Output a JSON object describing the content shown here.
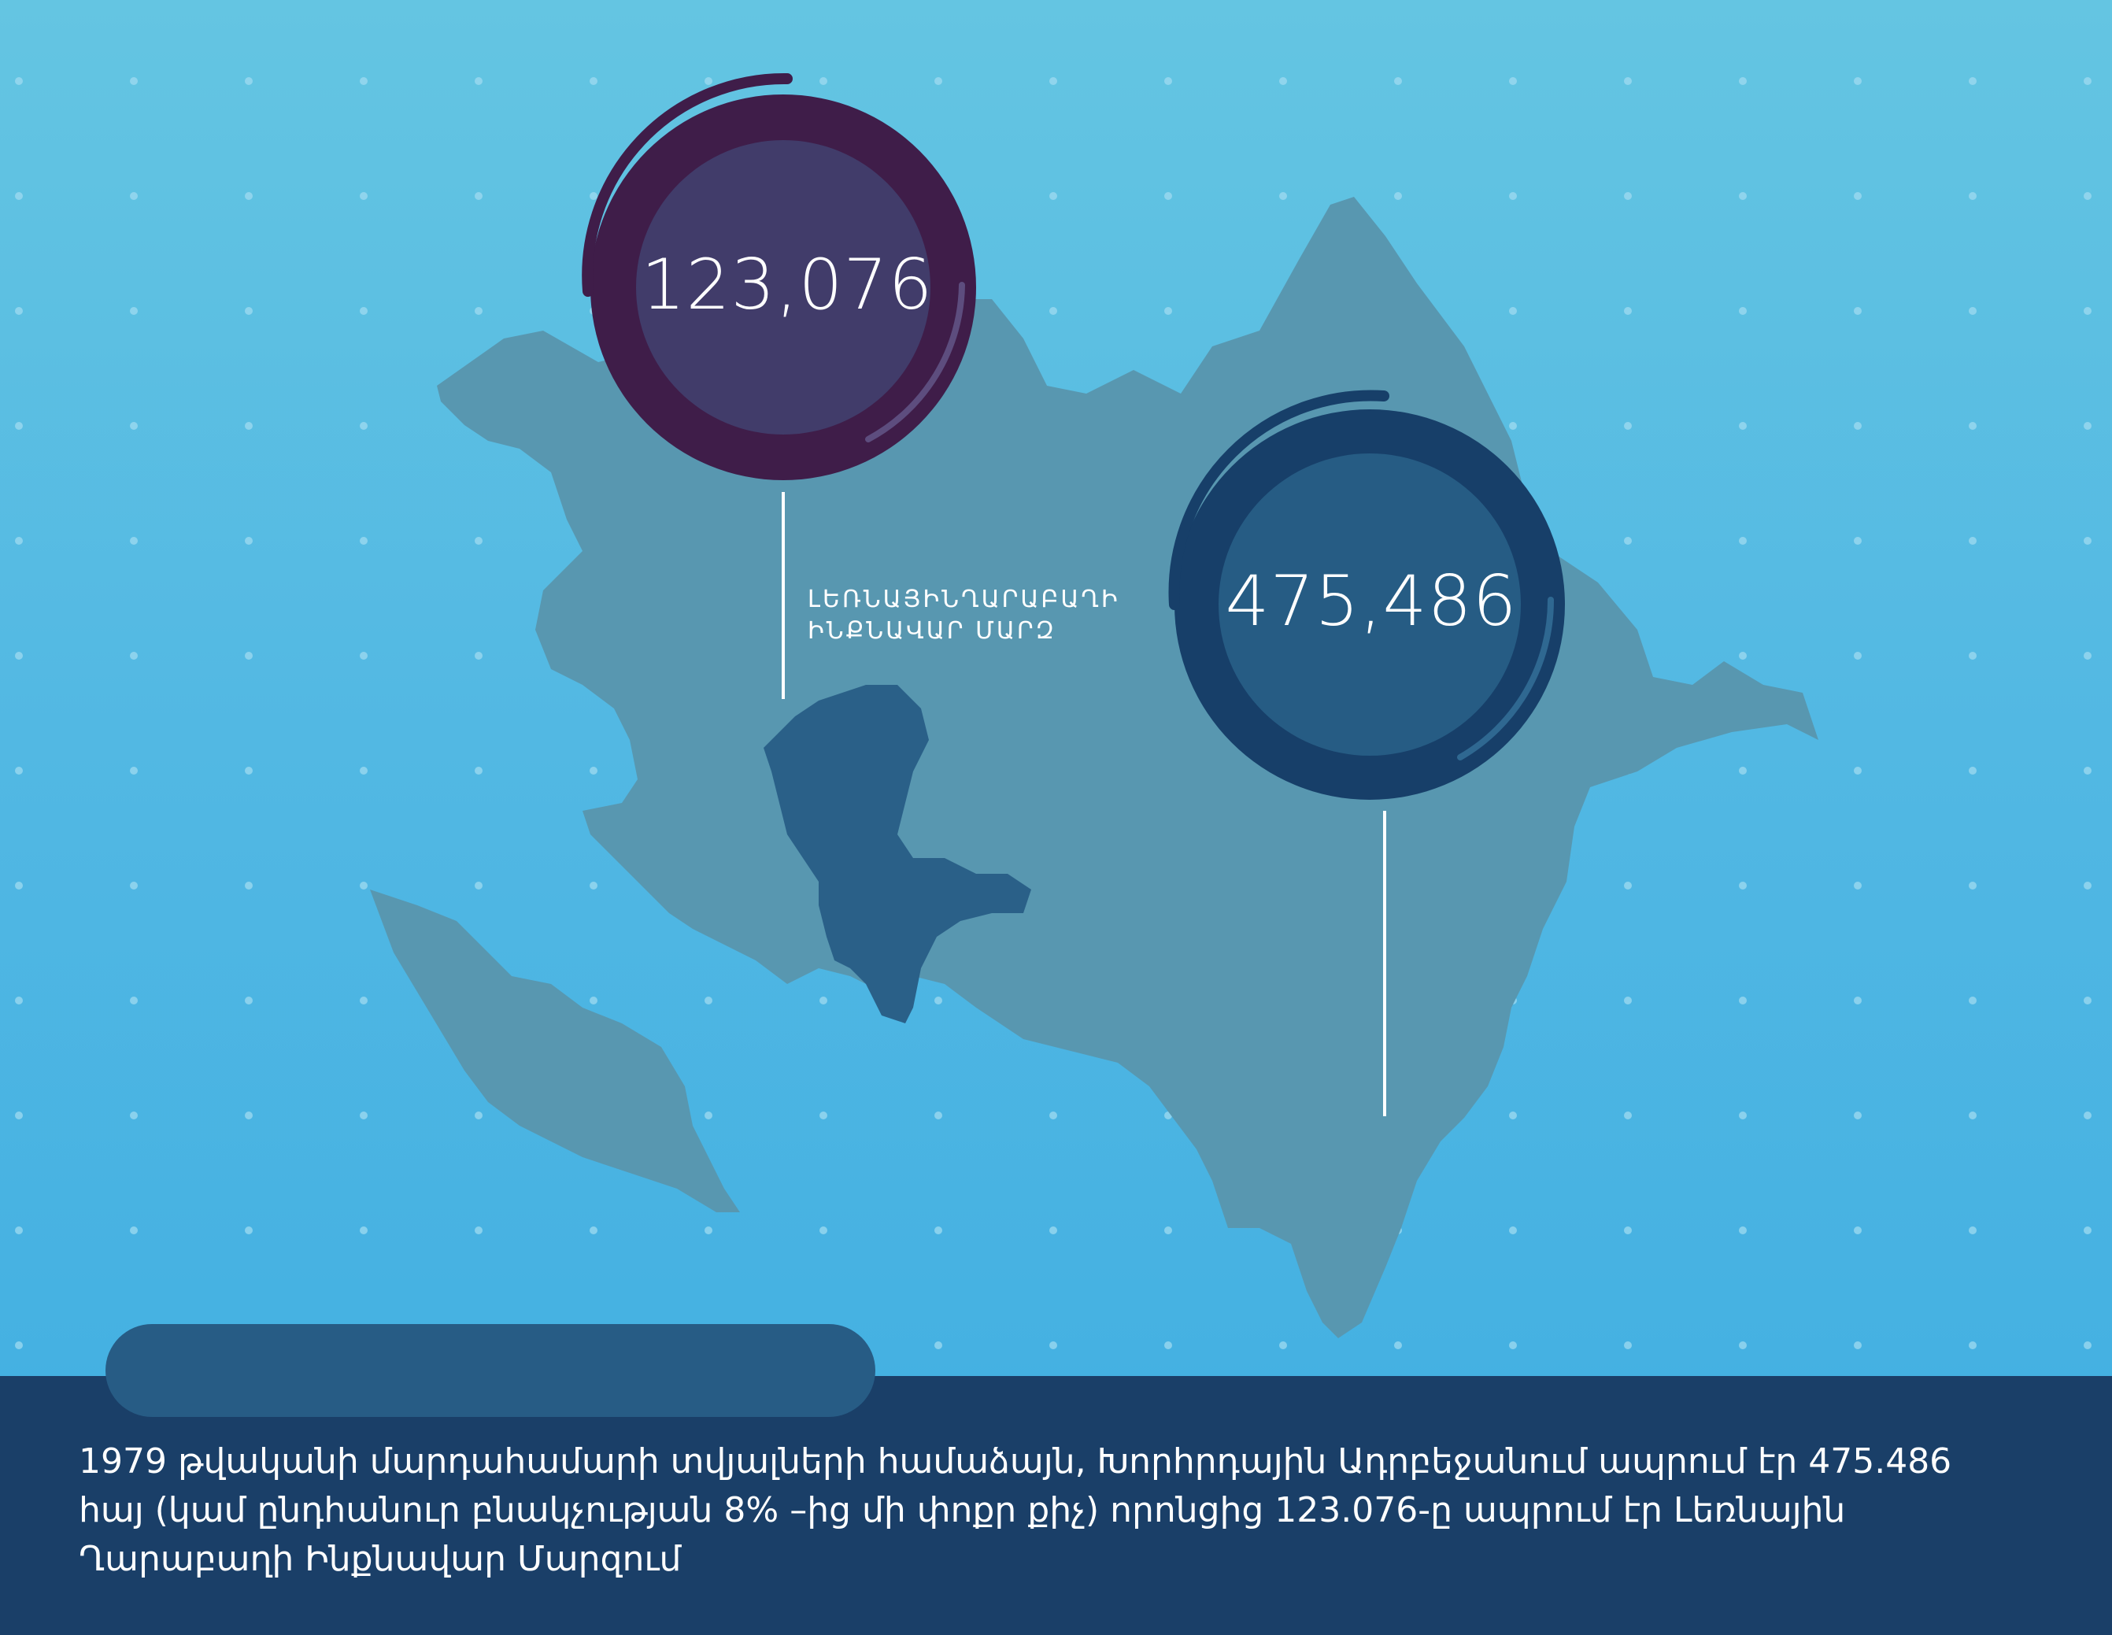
{
  "stats": {
    "nkao_population": "123,076",
    "azerbaijan_armenians": "475,486"
  },
  "region_label": {
    "line1": "ԼԵՌՆԱՅԻՆՂԱՐԱԲԱՂԻ",
    "line2": "ԻՆՔՆԱՎԱՐ ՄԱՐԶ"
  },
  "caption": {
    "line1": "1979 թվականի մարդահամարի տվյալների համաձայն, Խորհրդային Ադրբեջանում ապրում էր 475.486",
    "line2": "հայ (կամ ընդհանուր բնակչության 8% –ից մի փոքր քիչ) որոնցից 123.076-ը ապրում էր Լեռնային",
    "line3": "Ղարաբաղի Ինքնավար Մարզում"
  },
  "colors": {
    "background_top": "#64c5e2",
    "background_bottom": "#3faee2",
    "country_fill": "#5897b0",
    "region_fill": "#2a6088",
    "purple_ring": "#3f1d49",
    "purple_inner": "#413c6a",
    "blue_ring": "#173f69",
    "blue_inner": "#265c84",
    "band": "#1a3f68",
    "pill": "#275c85"
  }
}
